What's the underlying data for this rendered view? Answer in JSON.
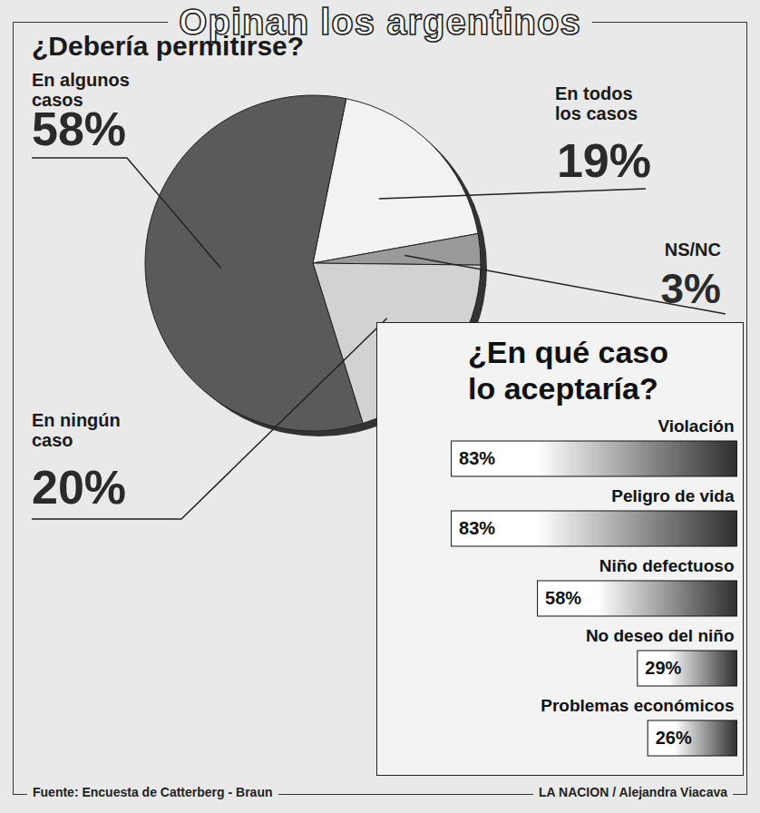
{
  "title": "Opinan los argentinos",
  "source": "Fuente: Encuesta de Catterberg - Braun",
  "credit": "LA NACION / Alejandra Viacava",
  "chart_data": [
    {
      "type": "pie",
      "title": "¿Debería permitirse?",
      "categories": [
        "En todos los casos",
        "NS/NC",
        "En ningún caso",
        "En algunos casos"
      ],
      "values": [
        19,
        3,
        20,
        58
      ],
      "value_labels": [
        "19%",
        "3%",
        "20%",
        "58%"
      ],
      "colors": [
        "#f2f2f2",
        "#9a9a9a",
        "#d2d2d2",
        "#5a5a5a"
      ],
      "data_labels": true
    },
    {
      "type": "bar",
      "title": "¿En qué caso lo aceptaría?",
      "categories": [
        "Violación",
        "Peligro de vida",
        "Niño defectuoso",
        "No deseo del niño",
        "Problemas económicos"
      ],
      "values": [
        83,
        83,
        58,
        29,
        26
      ],
      "value_labels": [
        "83%",
        "83%",
        "58%",
        "29%",
        "26%"
      ],
      "orientation": "horizontal",
      "xlim": [
        0,
        100
      ],
      "color": "#2e2e2e",
      "data_labels": true,
      "tick_labels": false
    }
  ]
}
